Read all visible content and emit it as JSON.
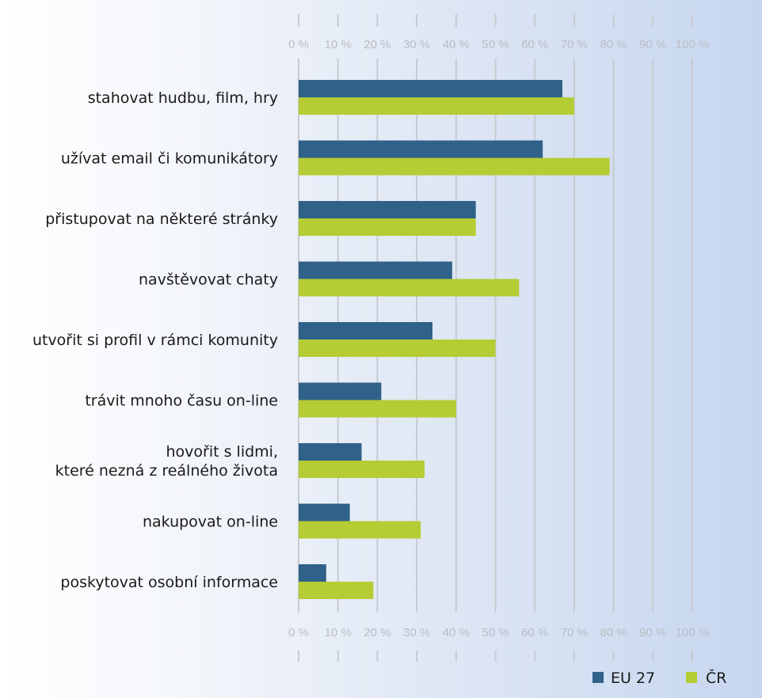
{
  "chart_data": {
    "type": "bar",
    "orientation": "horizontal",
    "categories": [
      [
        "stahovat hudbu, film, hry"
      ],
      [
        "užívat email či komunikátory"
      ],
      [
        "přistupovat na některé stránky"
      ],
      [
        "navštěvovat chaty"
      ],
      [
        "utvořit si profil v rámci komunity"
      ],
      [
        "trávit mnoho času on-line"
      ],
      [
        "hovořit s lidmi,",
        "které nezná z reálného života"
      ],
      [
        "nakupovat on-line"
      ],
      [
        "poskytovat osobní informace"
      ]
    ],
    "series": [
      {
        "name": "EU 27",
        "color": "#2f6189",
        "values": [
          67,
          62,
          45,
          39,
          34,
          21,
          16,
          13,
          7
        ]
      },
      {
        "name": "ČR",
        "color": "#b5cc34",
        "values": [
          70,
          79,
          45,
          56,
          50,
          40,
          32,
          31,
          19
        ]
      }
    ],
    "xlim": [
      0,
      100
    ],
    "ticks": [
      0,
      10,
      20,
      30,
      40,
      50,
      60,
      70,
      80,
      90,
      100
    ],
    "tick_labels": [
      "0 %",
      "10 %",
      "20 %",
      "30 %",
      "40 %",
      "50 %",
      "60 %",
      "70 %",
      "80 %",
      "90 %",
      "100 %"
    ],
    "grid_color": "#c8cbd0",
    "legend_position": "bottom-right"
  }
}
